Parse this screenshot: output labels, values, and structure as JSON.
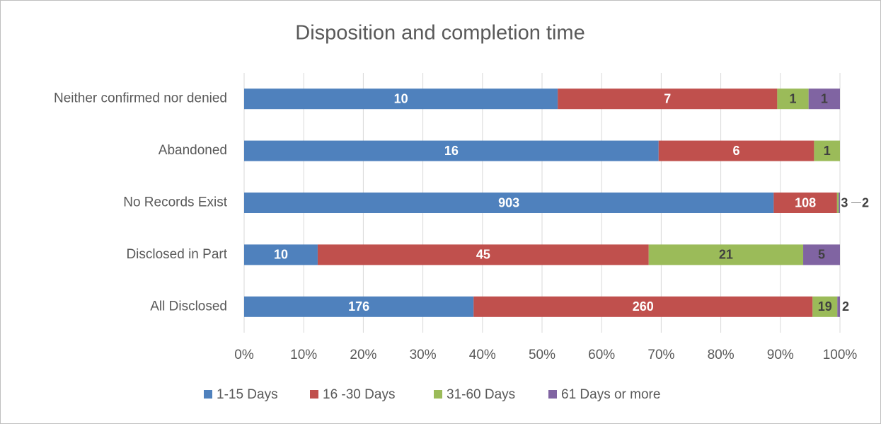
{
  "chart_data": {
    "type": "bar",
    "orientation": "horizontal",
    "stacking": "percent",
    "title": "Disposition and completion time",
    "categories": [
      "Neither confirmed nor denied",
      "Abandoned",
      "No Records Exist",
      "Disclosed in Part",
      "All Disclosed"
    ],
    "series": [
      {
        "name": "1-15 Days",
        "color": "#4f81bd",
        "values": [
          10,
          16,
          903,
          10,
          176
        ]
      },
      {
        "name": "16 -30 Days",
        "color": "#c0504d",
        "values": [
          7,
          6,
          108,
          45,
          260
        ]
      },
      {
        "name": "31-60 Days",
        "color": "#9bbb59",
        "values": [
          1,
          1,
          3,
          21,
          19
        ]
      },
      {
        "name": "61 Days or more",
        "color": "#8064a2",
        "values": [
          1,
          null,
          2,
          5,
          2
        ]
      }
    ],
    "xlim": [
      0,
      100
    ],
    "xticks": [
      {
        "value": 0,
        "label": "0%"
      },
      {
        "value": 10,
        "label": "10%"
      },
      {
        "value": 20,
        "label": "20%"
      },
      {
        "value": 30,
        "label": "30%"
      },
      {
        "value": 40,
        "label": "40%"
      },
      {
        "value": 50,
        "label": "50%"
      },
      {
        "value": 60,
        "label": "60%"
      },
      {
        "value": 70,
        "label": "70%"
      },
      {
        "value": 80,
        "label": "80%"
      },
      {
        "value": 90,
        "label": "90%"
      },
      {
        "value": 100,
        "label": "100%"
      }
    ],
    "grid": true,
    "legend": "bottom"
  }
}
